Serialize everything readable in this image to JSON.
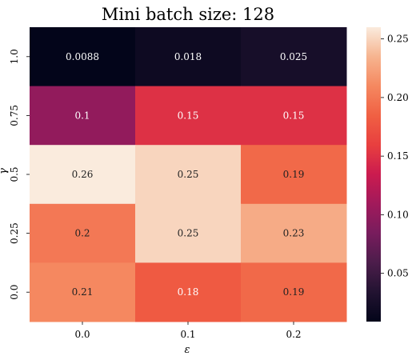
{
  "chart_data": {
    "type": "heatmap",
    "title": "Mini batch size: 128",
    "xlabel": "ε",
    "ylabel": "γ",
    "x_categories": [
      "0.0",
      "0.1",
      "0.2"
    ],
    "y_categories": [
      "1.0",
      "0.75",
      "0.5",
      "0.25",
      "0.0"
    ],
    "values": [
      [
        0.0088,
        0.018,
        0.025
      ],
      [
        0.1,
        0.15,
        0.15
      ],
      [
        0.26,
        0.25,
        0.19
      ],
      [
        0.2,
        0.25,
        0.23
      ],
      [
        0.21,
        0.18,
        0.19
      ]
    ],
    "labels": [
      [
        "0.0088",
        "0.018",
        "0.025"
      ],
      [
        "0.1",
        "0.15",
        "0.15"
      ],
      [
        "0.26",
        "0.25",
        "0.19"
      ],
      [
        "0.2",
        "0.25",
        "0.23"
      ],
      [
        "0.21",
        "0.18",
        "0.19"
      ]
    ],
    "colorbar": {
      "min": 0.0088,
      "max": 0.26,
      "ticks": [
        0.05,
        0.1,
        0.15,
        0.2,
        0.25
      ],
      "tick_labels": [
        "0.05",
        "0.10",
        "0.15",
        "0.20",
        "0.25"
      ]
    },
    "colormap": [
      "#03051a",
      "#221331",
      "#4c1d4b",
      "#781c5d",
      "#a11a5b",
      "#cb1b4f",
      "#e83f3f",
      "#f06043",
      "#f58860",
      "#f6b48f",
      "#faebdd"
    ]
  }
}
